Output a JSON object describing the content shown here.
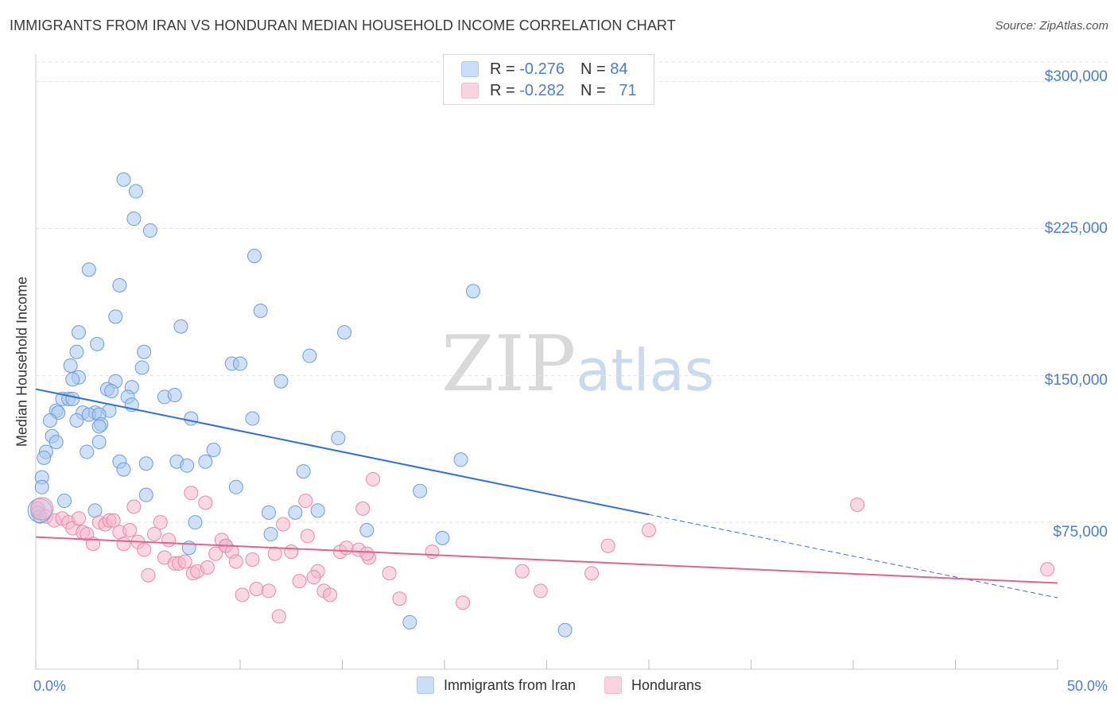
{
  "title": "IMMIGRANTS FROM IRAN VS HONDURAN MEDIAN HOUSEHOLD INCOME CORRELATION CHART",
  "source": "Source: ZipAtlas.com",
  "watermark": {
    "part1": "ZIP",
    "part2": "atlas"
  },
  "legend": {
    "rows": [
      {
        "r_label": "R = ",
        "r_value": "-0.276",
        "n_label": "N = ",
        "n_value": "84",
        "color": "#a9c8f0"
      },
      {
        "r_label": "R = ",
        "r_value": "-0.282",
        "n_label": "N = ",
        "n_value": "71",
        "color": "#f5b8cc"
      }
    ]
  },
  "bottom_legend": [
    {
      "label": "Immigrants from Iran",
      "color": "#a9c8f0"
    },
    {
      "label": "Hondurans",
      "color": "#f5b8cc"
    }
  ],
  "chart_data": {
    "type": "scatter",
    "ylabel": "Median Household Income",
    "x_tick_labels": [
      "0.0%",
      "50.0%"
    ],
    "y_tick_labels": [
      "$300,000",
      "$225,000",
      "$150,000",
      "$75,000"
    ],
    "xlim": [
      0,
      50
    ],
    "ylim": [
      0,
      310000
    ],
    "yticks": [
      75000,
      150000,
      225000,
      300000
    ],
    "grid": true,
    "series": [
      {
        "name": "Immigrants from Iran",
        "color": "#a9c8f0",
        "stroke": "#6a9ed8",
        "trend": {
          "x0": 0,
          "y0": 143000,
          "x1": 30,
          "y1": 79000,
          "dash_to": 50,
          "dash_y": 36500,
          "color": "#2f6fcf"
        },
        "points": [
          [
            4.3,
            250000
          ],
          [
            4.9,
            244000
          ],
          [
            4.8,
            230000
          ],
          [
            5.6,
            224000
          ],
          [
            2.6,
            204000
          ],
          [
            4.1,
            196000
          ],
          [
            21.4,
            193000
          ],
          [
            10.7,
            211000
          ],
          [
            3.9,
            180000
          ],
          [
            11.0,
            183000
          ],
          [
            7.1,
            175000
          ],
          [
            15.1,
            172000
          ],
          [
            2.1,
            172000
          ],
          [
            3.0,
            166000
          ],
          [
            2.0,
            162000
          ],
          [
            5.3,
            162000
          ],
          [
            13.4,
            160000
          ],
          [
            9.6,
            156000
          ],
          [
            10.0,
            156000
          ],
          [
            1.7,
            155000
          ],
          [
            5.2,
            154000
          ],
          [
            2.1,
            149000
          ],
          [
            1.8,
            148000
          ],
          [
            3.9,
            147000
          ],
          [
            12.0,
            147000
          ],
          [
            4.7,
            144000
          ],
          [
            3.5,
            143000
          ],
          [
            3.7,
            142000
          ],
          [
            4.5,
            139000
          ],
          [
            6.3,
            139000
          ],
          [
            6.8,
            140000
          ],
          [
            1.3,
            138000
          ],
          [
            1.6,
            138000
          ],
          [
            1.8,
            138000
          ],
          [
            4.7,
            135000
          ],
          [
            2.3,
            131000
          ],
          [
            1.0,
            132000
          ],
          [
            1.1,
            131000
          ],
          [
            2.9,
            131000
          ],
          [
            3.6,
            132000
          ],
          [
            2.6,
            130000
          ],
          [
            3.1,
            130000
          ],
          [
            0.7,
            127000
          ],
          [
            2.0,
            127000
          ],
          [
            7.6,
            128000
          ],
          [
            10.6,
            128000
          ],
          [
            3.2,
            125000
          ],
          [
            3.1,
            124000
          ],
          [
            0.8,
            119000
          ],
          [
            1.0,
            116000
          ],
          [
            3.1,
            116000
          ],
          [
            14.8,
            118000
          ],
          [
            8.7,
            112000
          ],
          [
            0.5,
            111000
          ],
          [
            2.5,
            111000
          ],
          [
            0.4,
            108000
          ],
          [
            4.1,
            106000
          ],
          [
            6.9,
            106000
          ],
          [
            7.4,
            104000
          ],
          [
            8.3,
            106000
          ],
          [
            5.4,
            105000
          ],
          [
            13.1,
            101000
          ],
          [
            20.8,
            107000
          ],
          [
            4.3,
            102000
          ],
          [
            0.3,
            98000
          ],
          [
            0.3,
            93000
          ],
          [
            9.8,
            93000
          ],
          [
            18.8,
            91000
          ],
          [
            5.4,
            89000
          ],
          [
            1.4,
            86000
          ],
          [
            2.9,
            81000
          ],
          [
            11.4,
            80000
          ],
          [
            12.7,
            80000
          ],
          [
            13.8,
            81000
          ],
          [
            0.1,
            80000
          ],
          [
            0.2,
            78000
          ],
          [
            7.8,
            75000
          ],
          [
            16.2,
            71000
          ],
          [
            11.5,
            69000
          ],
          [
            19.9,
            67000
          ],
          [
            9.3,
            63000
          ],
          [
            7.5,
            62000
          ],
          [
            18.3,
            24000
          ],
          [
            25.9,
            20000
          ]
        ]
      },
      {
        "name": "Hondurans",
        "color": "#f5b8cc",
        "stroke": "#e68aa8",
        "trend": {
          "x0": 0,
          "y0": 67500,
          "x1": 50,
          "y1": 44000,
          "color": "#e0638f"
        },
        "points": [
          [
            0.1,
            82000
          ],
          [
            0.5,
            78000
          ],
          [
            0.9,
            76000
          ],
          [
            1.3,
            77000
          ],
          [
            1.6,
            75000
          ],
          [
            1.8,
            72000
          ],
          [
            2.1,
            77000
          ],
          [
            2.3,
            70000
          ],
          [
            2.5,
            69000
          ],
          [
            2.8,
            64000
          ],
          [
            3.1,
            75000
          ],
          [
            3.4,
            74000
          ],
          [
            3.6,
            76000
          ],
          [
            3.8,
            76000
          ],
          [
            4.1,
            70000
          ],
          [
            4.3,
            64000
          ],
          [
            4.6,
            71000
          ],
          [
            4.8,
            83000
          ],
          [
            5.0,
            65000
          ],
          [
            5.3,
            61000
          ],
          [
            5.5,
            48000
          ],
          [
            5.8,
            69000
          ],
          [
            6.1,
            75000
          ],
          [
            6.3,
            57000
          ],
          [
            6.5,
            66000
          ],
          [
            6.8,
            54000
          ],
          [
            7.0,
            54000
          ],
          [
            7.3,
            55000
          ],
          [
            7.6,
            90000
          ],
          [
            7.7,
            49000
          ],
          [
            7.9,
            50000
          ],
          [
            8.3,
            85000
          ],
          [
            8.4,
            52000
          ],
          [
            8.8,
            59000
          ],
          [
            9.1,
            66000
          ],
          [
            9.3,
            63000
          ],
          [
            9.6,
            60000
          ],
          [
            9.8,
            55000
          ],
          [
            10.1,
            38000
          ],
          [
            10.6,
            56000
          ],
          [
            10.8,
            41000
          ],
          [
            11.4,
            40000
          ],
          [
            11.7,
            59000
          ],
          [
            11.9,
            27000
          ],
          [
            12.1,
            74000
          ],
          [
            12.5,
            60000
          ],
          [
            12.9,
            45000
          ],
          [
            13.3,
            68000
          ],
          [
            13.2,
            86000
          ],
          [
            13.8,
            50000
          ],
          [
            14.1,
            40000
          ],
          [
            14.4,
            38000
          ],
          [
            13.6,
            47000
          ],
          [
            14.9,
            60000
          ],
          [
            15.2,
            62000
          ],
          [
            15.8,
            61000
          ],
          [
            16.0,
            82000
          ],
          [
            16.3,
            57000
          ],
          [
            16.5,
            97000
          ],
          [
            17.3,
            49000
          ],
          [
            17.8,
            36000
          ],
          [
            19.4,
            60000
          ],
          [
            20.9,
            34000
          ],
          [
            23.8,
            50000
          ],
          [
            24.7,
            40000
          ],
          [
            27.2,
            49000
          ],
          [
            28.0,
            63000
          ],
          [
            30.0,
            71000
          ],
          [
            40.2,
            84000
          ],
          [
            49.5,
            51000
          ],
          [
            16.2,
            59000
          ]
        ]
      }
    ]
  }
}
